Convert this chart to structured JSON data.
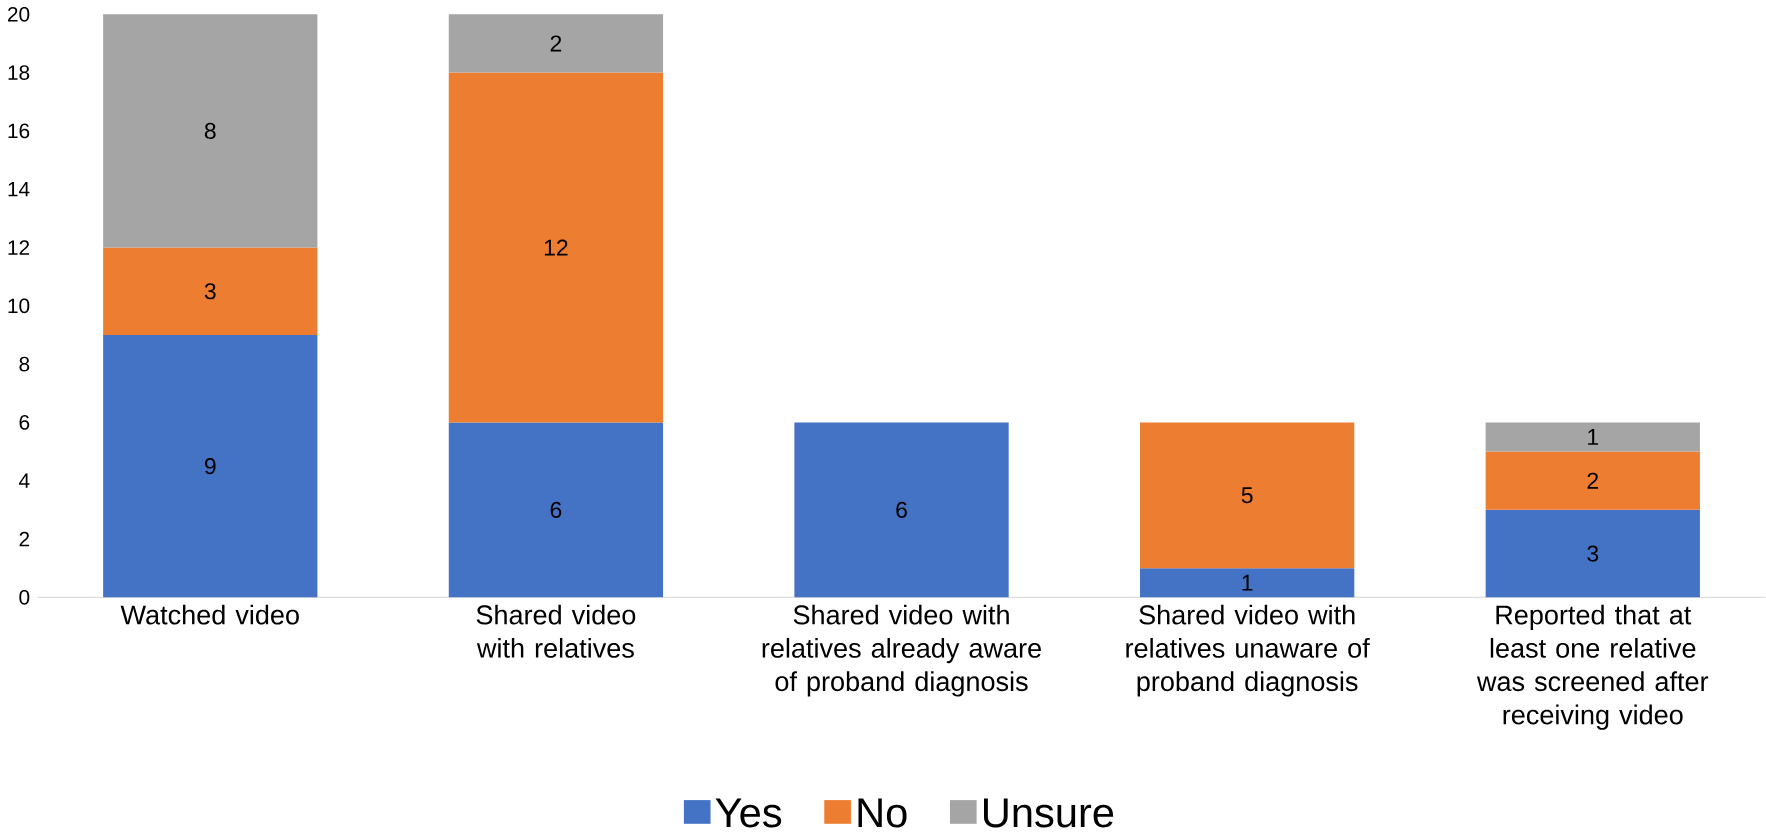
{
  "chart_data": {
    "type": "bar",
    "stacked": true,
    "data_labels": true,
    "legend": "bottom",
    "grid": false,
    "categories": [
      "Watched video",
      "Shared video with relatives",
      "Shared video with relatives already aware of proband diagnosis",
      "Shared video with relatives unaware of proband diagnosis",
      "Reported that at least one relative was screened after receiving video"
    ],
    "ylim": [
      0,
      20
    ],
    "yticks": [
      0,
      2,
      4,
      6,
      8,
      10,
      12,
      14,
      16,
      18,
      20
    ],
    "series": [
      {
        "name": "Yes",
        "color": "#4472c4",
        "values": [
          9,
          6,
          6,
          1,
          3
        ]
      },
      {
        "name": "No",
        "color": "#ed7d31",
        "values": [
          3,
          12,
          null,
          5,
          2
        ]
      },
      {
        "name": "Unsure",
        "color": "#a5a5a5",
        "values": [
          8,
          2,
          null,
          null,
          1
        ]
      }
    ]
  }
}
